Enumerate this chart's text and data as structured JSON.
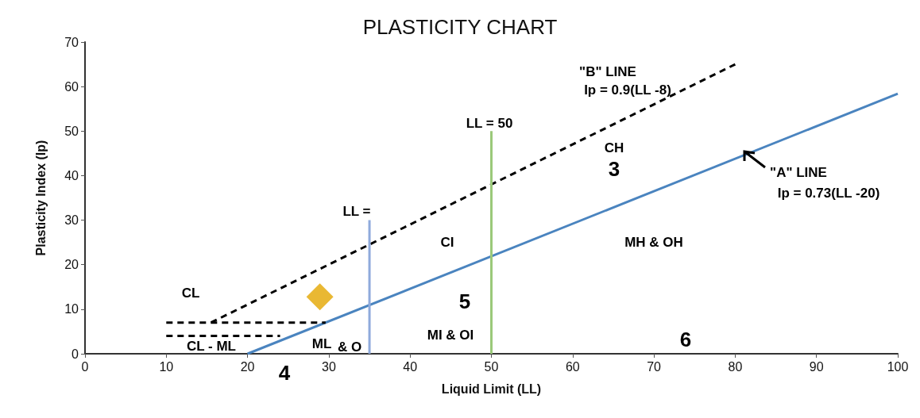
{
  "chart_data": {
    "type": "line",
    "title": "PLASTICITY CHART",
    "xlabel": "Liquid Limit (LL)",
    "ylabel": "Plasticity Index (Ip)",
    "xlim": [
      0,
      100
    ],
    "xticks": [
      0,
      10,
      20,
      30,
      40,
      50,
      60,
      70,
      80,
      90,
      100
    ],
    "ylim": [
      0,
      70
    ],
    "yticks": [
      0,
      10,
      20,
      30,
      40,
      50,
      60,
      70
    ],
    "grid": false,
    "series": [
      {
        "x": [
          20,
          100
        ],
        "values": [
          0,
          58.4
        ],
        "color": "#4a84bf",
        "line_style": "solid",
        "marker": "none"
      },
      {
        "x": [
          15.5,
          80
        ],
        "values": [
          7,
          65
        ],
        "color": "#000000",
        "line_style": "dashed",
        "marker": "none"
      },
      {
        "x": [
          10,
          29.6
        ],
        "values": [
          7,
          7
        ],
        "color": "#000000",
        "line_style": "dashed",
        "marker": "none"
      },
      {
        "x": [
          10,
          24
        ],
        "values": [
          4,
          4
        ],
        "color": "#000000",
        "line_style": "dashed",
        "marker": "none"
      },
      {
        "x": [
          35,
          35
        ],
        "values": [
          0,
          30
        ],
        "color": "#8faadc",
        "line_style": "solid",
        "marker": "none"
      },
      {
        "x": [
          50,
          50
        ],
        "values": [
          0,
          50
        ],
        "color": "#9bc97a",
        "line_style": "solid",
        "marker": "none"
      },
      {
        "type": "scatter",
        "x": [
          28.9
        ],
        "values": [
          12.8
        ],
        "color": "#e3a600",
        "marker": "diamond"
      }
    ],
    "annotations": [
      "\"B\" LINE",
      "Ip = 0.9(LL -8)",
      "LL = 50",
      "CH",
      "3",
      "\"A\" LINE",
      "Ip = 0.73(LL -20)",
      "LL =",
      "CI",
      "MH & OH",
      "CL",
      "5",
      "CL - ML",
      "ML",
      "& O",
      "4",
      "MI & OI",
      "6"
    ]
  }
}
